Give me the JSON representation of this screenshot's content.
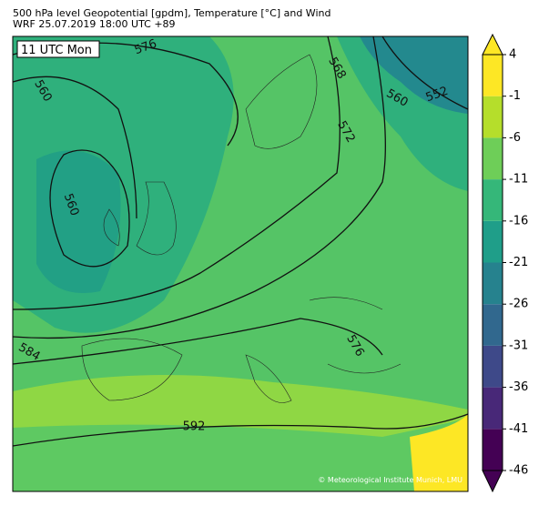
{
  "header": {
    "title": "500 hPa level Geopotential [gpdm], Temperature [°C] and Wind",
    "subtitle": "WRF 25.07.2019 18:00 UTC +89"
  },
  "map": {
    "time_label": "11 UTC Mon",
    "contour_labels": [
      "576",
      "560",
      "568",
      "560",
      "552",
      "572",
      "560",
      "584",
      "576",
      "592"
    ],
    "credit": "© Meteorological Institute Munich, LMU"
  },
  "colorbar": {
    "lim": [
      -46,
      4
    ],
    "ticks": [
      -46,
      -41,
      -36,
      -31,
      -26,
      -21,
      -16,
      -11,
      -6,
      -1,
      4
    ],
    "colors": [
      "#440154",
      "#482878",
      "#3e4989",
      "#31688e",
      "#26828e",
      "#1f9e89",
      "#35b779",
      "#6ece58",
      "#b5de2b",
      "#fde725"
    ]
  }
}
